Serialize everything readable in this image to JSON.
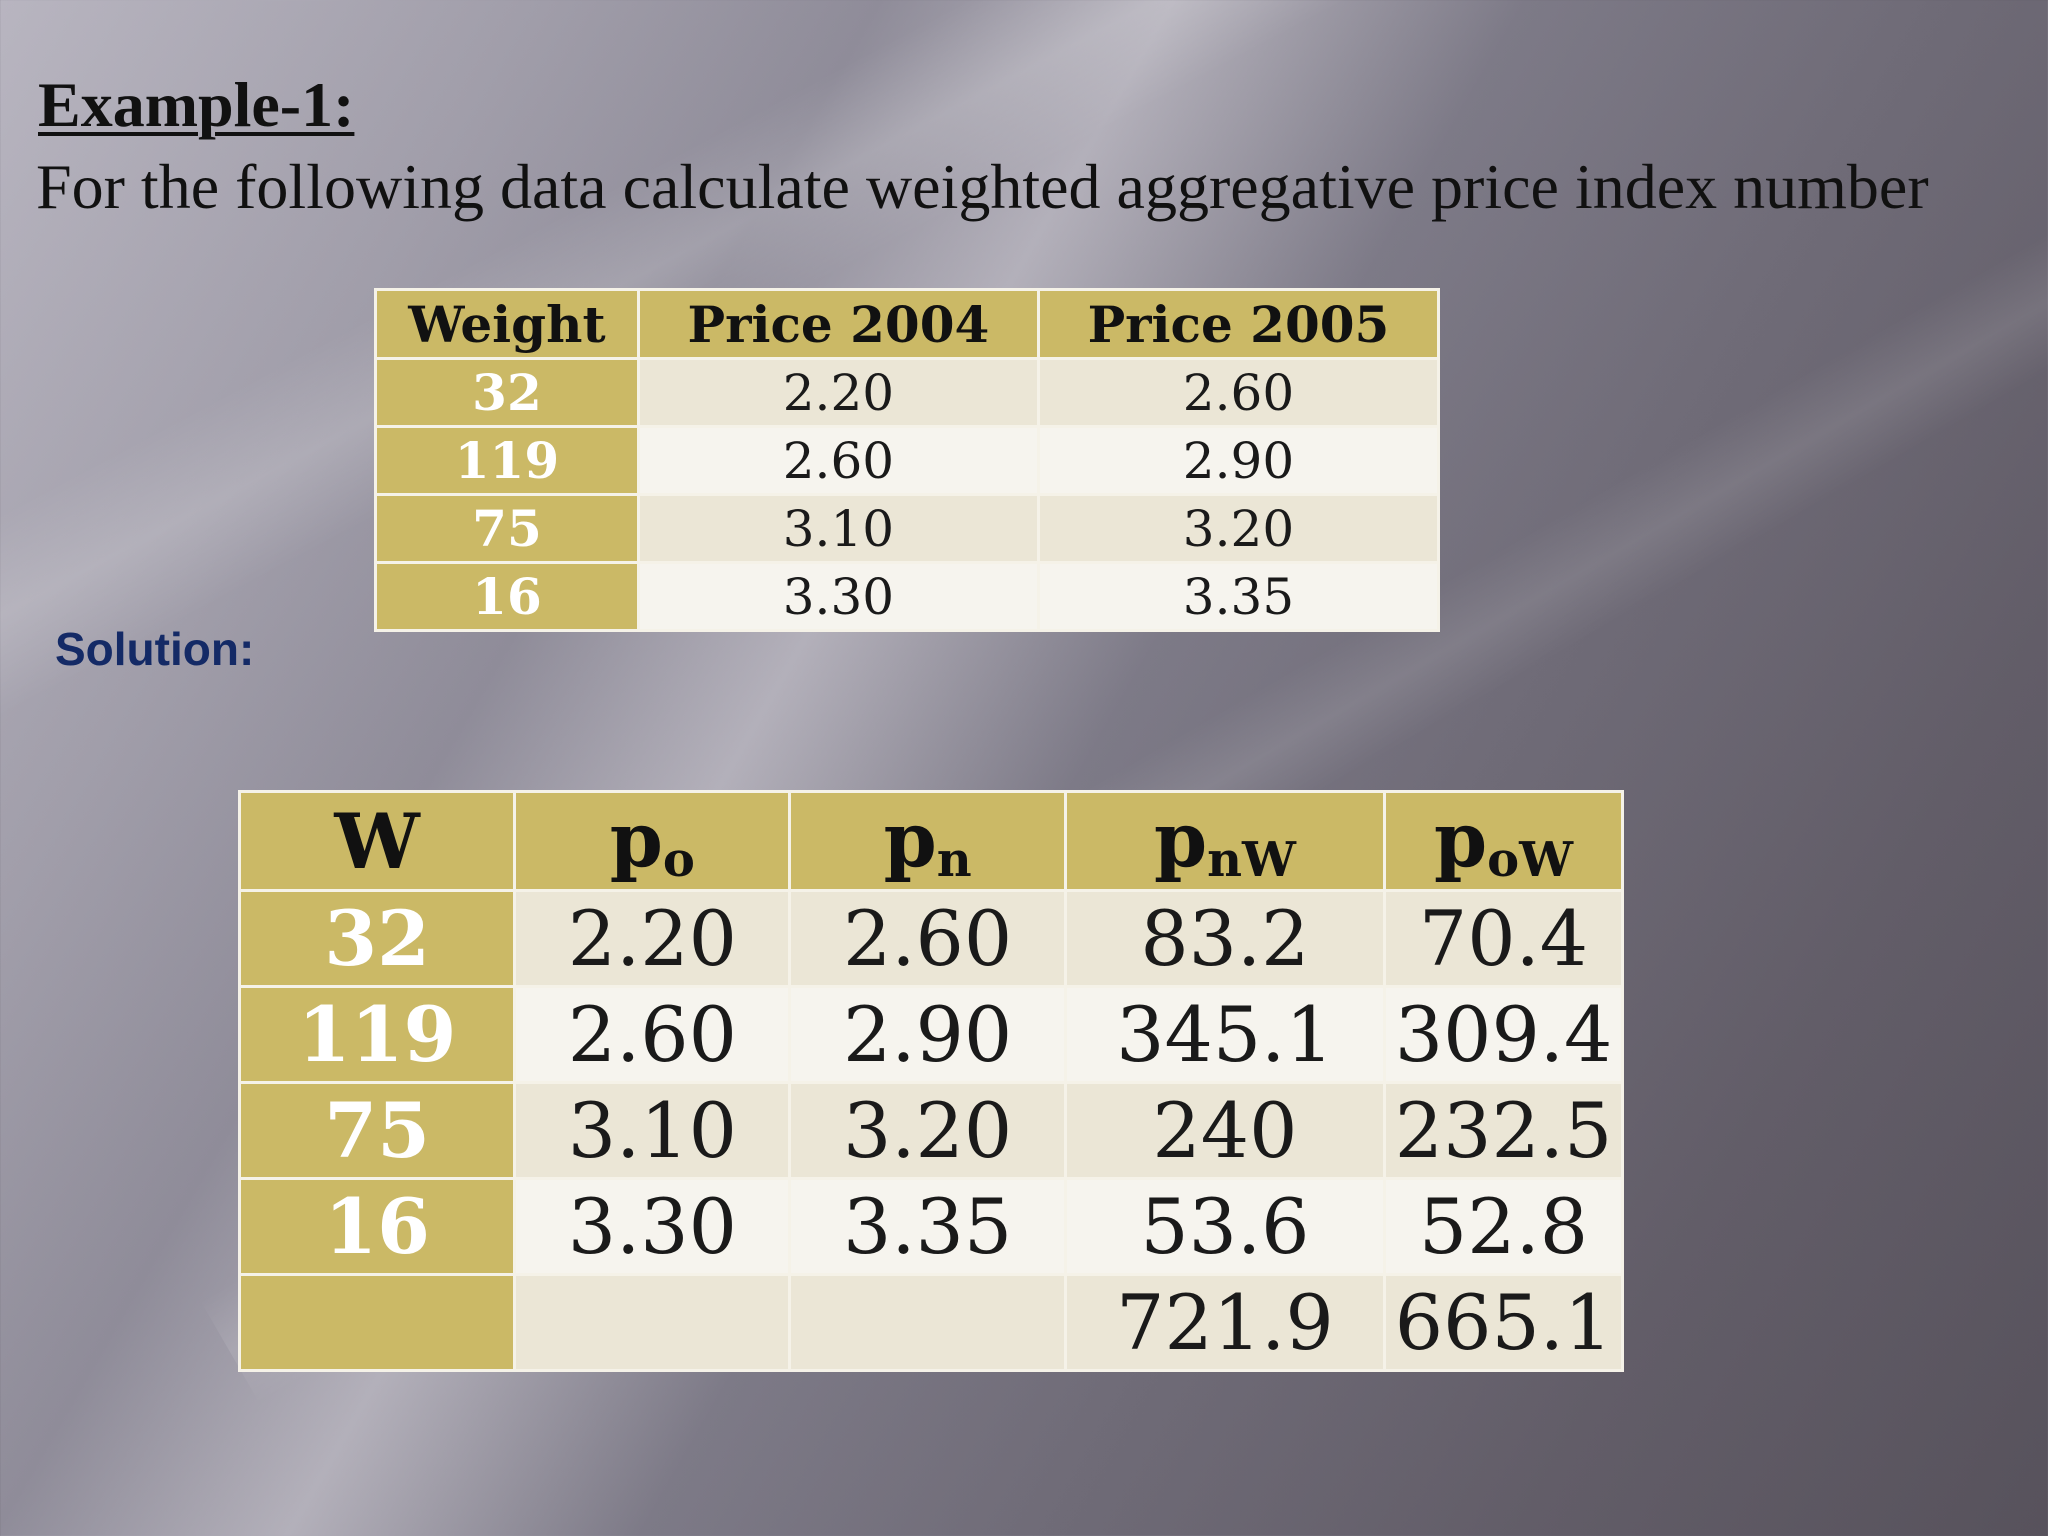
{
  "title": "Example-1:",
  "problem": "For the following data calculate weighted aggregative price index number",
  "solution_label": "Solution:",
  "table1": {
    "headers": [
      "Weight",
      "Price 2004",
      "Price 2005"
    ],
    "rows": [
      [
        "32",
        "2.20",
        "2.60"
      ],
      [
        "119",
        "2.60",
        "2.90"
      ],
      [
        "75",
        "3.10",
        "3.20"
      ],
      [
        "16",
        "3.30",
        "3.35"
      ]
    ]
  },
  "table2": {
    "headers": {
      "w": "W",
      "po": "p",
      "po_sub": "o",
      "pn": "p",
      "pn_sub": "n",
      "pnw": "p",
      "pnw_sub": "nW",
      "pow": "p",
      "pow_sub": "oW"
    },
    "rows": [
      [
        "32",
        "2.20",
        "2.60",
        "83.2",
        "70.4"
      ],
      [
        "119",
        "2.60",
        "2.90",
        "345.1",
        "309.4"
      ],
      [
        "75",
        "3.10",
        "3.20",
        "240",
        "232.5"
      ],
      [
        "16",
        "3.30",
        "3.35",
        "53.6",
        "52.8"
      ]
    ],
    "totals": [
      "",
      "",
      "",
      "721.9",
      "665.1"
    ]
  },
  "colors": {
    "header_gold": "#cbb966",
    "cell_light": "#ebe6d6",
    "cell_lighter": "#f6f4ee",
    "solution_blue": "#142a66"
  }
}
